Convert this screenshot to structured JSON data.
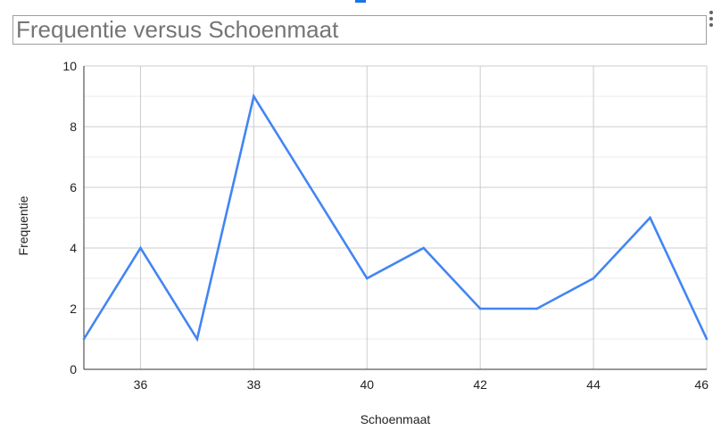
{
  "chart_data": {
    "type": "line",
    "title": "Frequentie versus Schoenmaat",
    "xlabel": "Schoenmaat",
    "ylabel": "Frequentie",
    "xlim": [
      35,
      46
    ],
    "ylim": [
      0,
      10
    ],
    "x_ticks": [
      36,
      38,
      40,
      42,
      44,
      46
    ],
    "y_ticks": [
      0,
      2,
      4,
      6,
      8,
      10
    ],
    "grid": true,
    "series": [
      {
        "x": [
          35,
          36,
          37,
          38,
          39,
          40,
          41,
          42,
          43,
          44,
          45,
          46
        ],
        "values": [
          1,
          4,
          1,
          9,
          6,
          3,
          4,
          2,
          2,
          3,
          5,
          1
        ],
        "color": "#4285f4"
      }
    ]
  },
  "colors": {
    "line": "#4285f4",
    "gridline": "#cccccc",
    "minor_gridline": "#ebebeb",
    "accent": "#1a73e8"
  },
  "icons": {
    "menu": "more-vert-icon"
  }
}
